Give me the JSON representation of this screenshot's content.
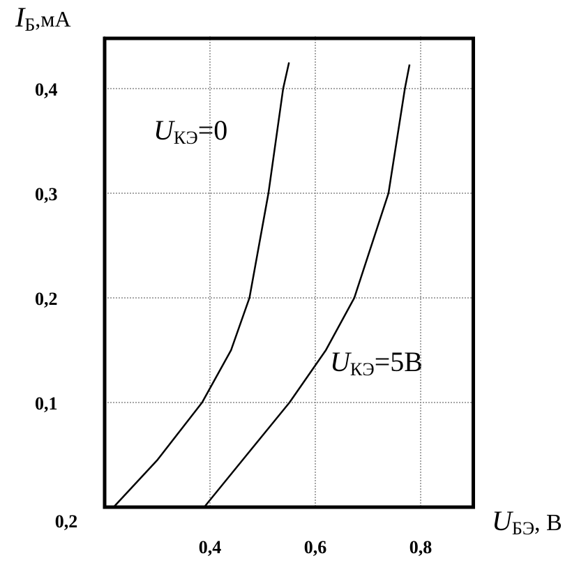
{
  "chart_data": {
    "type": "line",
    "y_label": {
      "symbol": "I",
      "subscript": "Б",
      "unit": ",мА"
    },
    "x_label": {
      "symbol": "U",
      "subscript": "БЭ",
      "unit": ", В"
    },
    "xlim": [
      0.2,
      0.9
    ],
    "ylim": [
      0,
      0.45
    ],
    "xticks": [
      {
        "value": 0.2,
        "label": "0,2"
      },
      {
        "value": 0.4,
        "label": "0,4"
      },
      {
        "value": 0.6,
        "label": "0,6"
      },
      {
        "value": 0.8,
        "label": "0,8"
      }
    ],
    "yticks": [
      {
        "value": 0.1,
        "label": "0,1"
      },
      {
        "value": 0.2,
        "label": "0,2"
      },
      {
        "value": 0.3,
        "label": "0,3"
      },
      {
        "value": 0.4,
        "label": "0,4"
      }
    ],
    "grid": true,
    "series": [
      {
        "name": {
          "symbol": "U",
          "subscript": "КЭ",
          "suffix": "=0"
        },
        "color": "#000000",
        "x": [
          0.217,
          0.3,
          0.385,
          0.44,
          0.475,
          0.511,
          0.539,
          0.55
        ],
        "values": [
          0,
          0.045,
          0.1,
          0.15,
          0.2,
          0.3,
          0.4,
          0.425
        ]
      },
      {
        "name": {
          "symbol": "U",
          "subscript": "КЭ",
          "suffix": "=5В"
        },
        "color": "#000000",
        "x": [
          0.389,
          0.47,
          0.551,
          0.62,
          0.674,
          0.739,
          0.77,
          0.779
        ],
        "values": [
          0,
          0.05,
          0.1,
          0.15,
          0.2,
          0.3,
          0.4,
          0.423
        ]
      }
    ]
  }
}
